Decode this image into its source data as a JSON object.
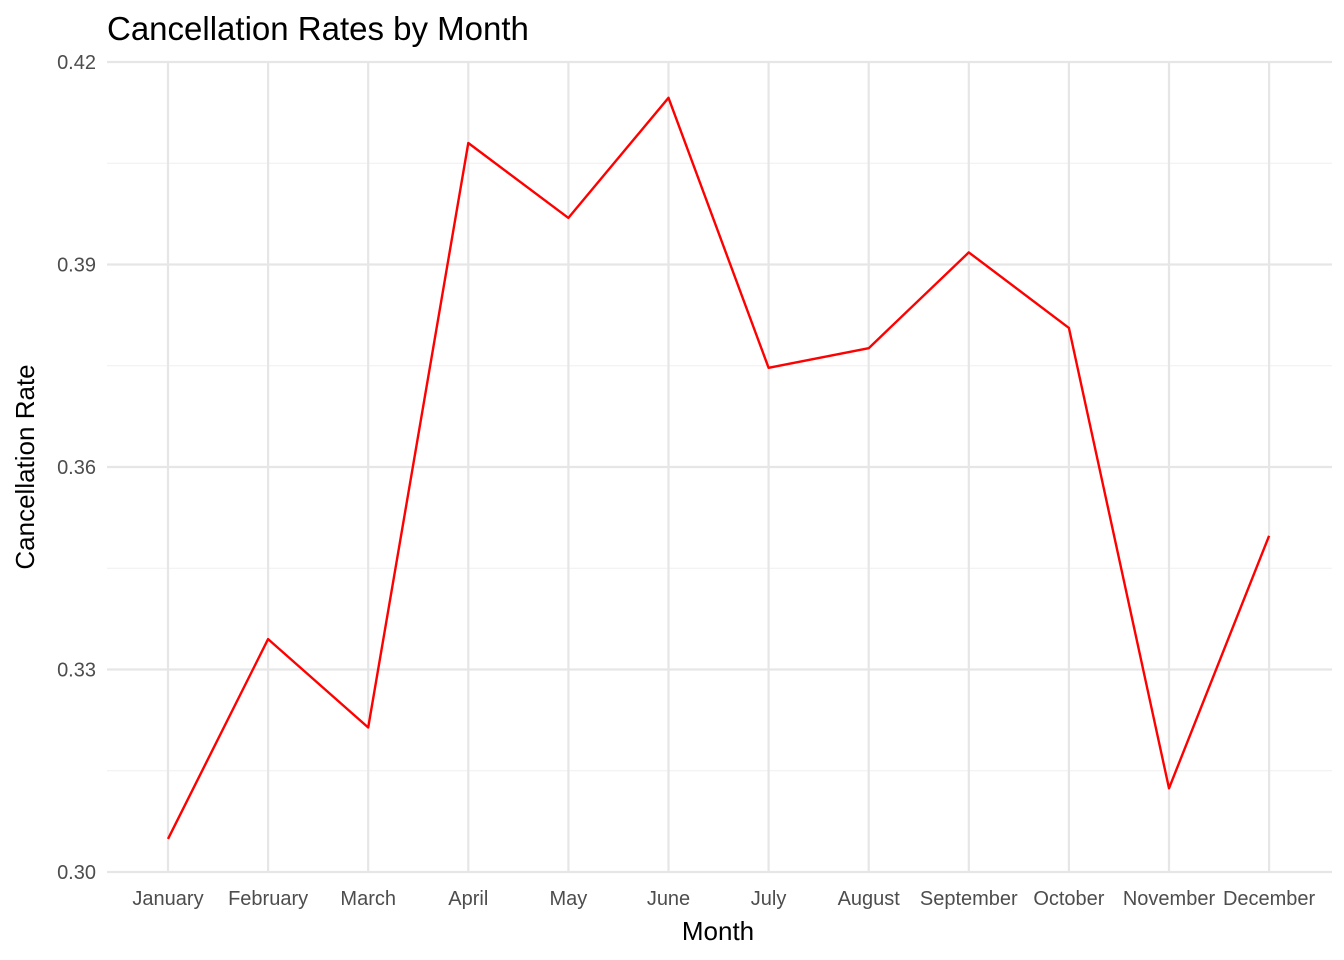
{
  "chart_data": {
    "type": "line",
    "title": "Cancellation Rates by Month",
    "xlabel": "Month",
    "ylabel": "Cancellation Rate",
    "categories": [
      "January",
      "February",
      "March",
      "April",
      "May",
      "June",
      "July",
      "August",
      "September",
      "October",
      "November",
      "December"
    ],
    "series": [
      {
        "color": "#ff0000",
        "values": [
          0.3049,
          0.3345,
          0.3214,
          0.408,
          0.3969,
          0.4147,
          0.3747,
          0.3776,
          0.3918,
          0.3806,
          0.3124,
          0.3498
        ]
      }
    ],
    "ylim": [
      0.3,
      0.42
    ],
    "yticks": [
      0.3,
      0.33,
      0.36,
      0.39,
      0.42
    ],
    "ytick_labels": [
      "0.30",
      "0.33",
      "0.36",
      "0.39",
      "0.42"
    ],
    "grid": true,
    "legend": "none"
  }
}
